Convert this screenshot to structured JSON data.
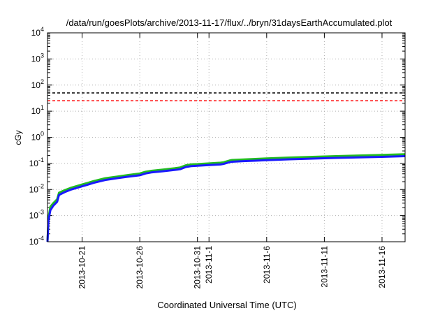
{
  "chart_data": {
    "type": "line",
    "title": "/data/run/goesPlots/archive/2013-11-17/flux/../bryn/31daysEarthAccumulated.plot",
    "xlabel": "Coordinated Universal Time (UTC)",
    "ylabel": "cGy",
    "y_scale": "log",
    "ylim": [
      0.0001,
      10000
    ],
    "xlim": [
      "2013-10-18",
      "2013-11-18"
    ],
    "grid": true,
    "y_ticks": [
      {
        "value": 0.0001,
        "base": "10",
        "exp": "-4"
      },
      {
        "value": 0.001,
        "base": "10",
        "exp": "-3"
      },
      {
        "value": 0.01,
        "base": "10",
        "exp": "-2"
      },
      {
        "value": 0.1,
        "base": "10",
        "exp": "-1"
      },
      {
        "value": 1,
        "base": "10",
        "exp": "0"
      },
      {
        "value": 10,
        "base": "10",
        "exp": "1"
      },
      {
        "value": 100,
        "base": "10",
        "exp": "2"
      },
      {
        "value": 1000,
        "base": "10",
        "exp": "3"
      },
      {
        "value": 10000,
        "base": "10",
        "exp": "4"
      }
    ],
    "x_ticks": [
      {
        "date": "2013-10-21",
        "label": "2013-10-21"
      },
      {
        "date": "2013-10-26",
        "label": "2013-10-26"
      },
      {
        "date": "2013-10-31",
        "label": "2013-10-31"
      },
      {
        "date": "2013-11-01",
        "label": "2013-11-1"
      },
      {
        "date": "2013-11-06",
        "label": "2013-11-6"
      },
      {
        "date": "2013-11-11",
        "label": "2013-11-11"
      },
      {
        "date": "2013-11-16",
        "label": "2013-11-16"
      }
    ],
    "reference_lines": [
      {
        "y": 50,
        "color": "#000000",
        "style": "dashed"
      },
      {
        "y": 25,
        "color": "#ff0000",
        "style": "dashed"
      }
    ],
    "series": [
      {
        "color": "#22bb22",
        "points": [
          [
            "2013-10-18 00:00",
            0.0001
          ],
          [
            "2013-10-18 02:00",
            0.0008
          ],
          [
            "2013-10-18 06:00",
            0.0022
          ],
          [
            "2013-10-18 12:00",
            0.003
          ],
          [
            "2013-10-18 20:00",
            0.0042
          ],
          [
            "2013-10-19 00:00",
            0.0075
          ],
          [
            "2013-10-19 12:00",
            0.0095
          ],
          [
            "2013-10-20 00:00",
            0.0115
          ],
          [
            "2013-10-21 00:00",
            0.0155
          ],
          [
            "2013-10-21 12:00",
            0.018
          ],
          [
            "2013-10-22 00:00",
            0.021
          ],
          [
            "2013-10-23 00:00",
            0.027
          ],
          [
            "2013-10-24 00:00",
            0.031
          ],
          [
            "2013-10-25 00:00",
            0.036
          ],
          [
            "2013-10-26 00:00",
            0.041
          ],
          [
            "2013-10-26 12:00",
            0.048
          ],
          [
            "2013-10-27 00:00",
            0.052
          ],
          [
            "2013-10-28 00:00",
            0.058
          ],
          [
            "2013-10-29 00:00",
            0.065
          ],
          [
            "2013-10-29 12:00",
            0.07
          ],
          [
            "2013-10-30 00:00",
            0.085
          ],
          [
            "2013-10-30 12:00",
            0.092
          ],
          [
            "2013-10-31 00:00",
            0.094
          ],
          [
            "2013-11-01 00:00",
            0.1
          ],
          [
            "2013-11-02 00:00",
            0.106
          ],
          [
            "2013-11-02 06:00",
            0.11
          ],
          [
            "2013-11-02 18:00",
            0.128
          ],
          [
            "2013-11-03 00:00",
            0.135
          ],
          [
            "2013-11-04 00:00",
            0.142
          ],
          [
            "2013-11-05 00:00",
            0.148
          ],
          [
            "2013-11-06 00:00",
            0.155
          ],
          [
            "2013-11-08 00:00",
            0.168
          ],
          [
            "2013-11-10 00:00",
            0.178
          ],
          [
            "2013-11-12 00:00",
            0.19
          ],
          [
            "2013-11-14 00:00",
            0.2
          ],
          [
            "2013-11-16 00:00",
            0.21
          ],
          [
            "2013-11-18 00:00",
            0.225
          ]
        ]
      },
      {
        "color": "#1a1aff",
        "points": [
          [
            "2013-10-18 00:00",
            0.0001
          ],
          [
            "2013-10-18 02:00",
            0.00065
          ],
          [
            "2013-10-18 06:00",
            0.0016
          ],
          [
            "2013-10-18 12:00",
            0.0024
          ],
          [
            "2013-10-18 20:00",
            0.0034
          ],
          [
            "2013-10-19 00:00",
            0.0062
          ],
          [
            "2013-10-19 12:00",
            0.008
          ],
          [
            "2013-10-20 00:00",
            0.0098
          ],
          [
            "2013-10-21 00:00",
            0.0132
          ],
          [
            "2013-10-21 12:00",
            0.0153
          ],
          [
            "2013-10-22 00:00",
            0.018
          ],
          [
            "2013-10-23 00:00",
            0.023
          ],
          [
            "2013-10-24 00:00",
            0.027
          ],
          [
            "2013-10-25 00:00",
            0.031
          ],
          [
            "2013-10-26 00:00",
            0.035
          ],
          [
            "2013-10-26 12:00",
            0.041
          ],
          [
            "2013-10-27 00:00",
            0.045
          ],
          [
            "2013-10-28 00:00",
            0.05
          ],
          [
            "2013-10-29 00:00",
            0.056
          ],
          [
            "2013-10-29 12:00",
            0.06
          ],
          [
            "2013-10-30 00:00",
            0.073
          ],
          [
            "2013-10-30 12:00",
            0.079
          ],
          [
            "2013-10-31 00:00",
            0.081
          ],
          [
            "2013-11-01 00:00",
            0.086
          ],
          [
            "2013-11-02 00:00",
            0.091
          ],
          [
            "2013-11-02 06:00",
            0.095
          ],
          [
            "2013-11-02 18:00",
            0.11
          ],
          [
            "2013-11-03 00:00",
            0.116
          ],
          [
            "2013-11-04 00:00",
            0.122
          ],
          [
            "2013-11-05 00:00",
            0.127
          ],
          [
            "2013-11-06 00:00",
            0.133
          ],
          [
            "2013-11-08 00:00",
            0.144
          ],
          [
            "2013-11-10 00:00",
            0.153
          ],
          [
            "2013-11-12 00:00",
            0.162
          ],
          [
            "2013-11-14 00:00",
            0.17
          ],
          [
            "2013-11-16 00:00",
            0.178
          ],
          [
            "2013-11-18 00:00",
            0.19
          ]
        ]
      }
    ]
  }
}
